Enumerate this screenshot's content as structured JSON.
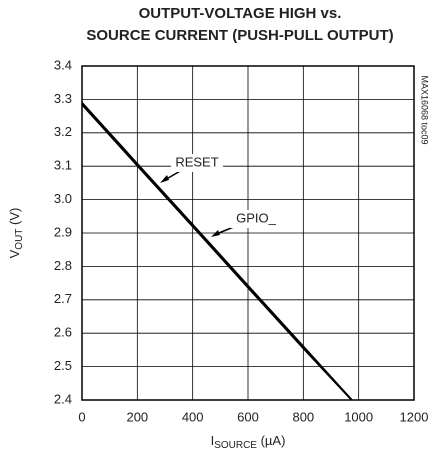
{
  "chart_data": {
    "type": "line",
    "title": [
      "OUTPUT-VOLTAGE HIGH vs.",
      "SOURCE CURRENT (PUSH-PULL OUTPUT)"
    ],
    "xlabel": [
      "I",
      "SOURCE",
      " (µA)"
    ],
    "ylabel": [
      "V",
      "OUT",
      " (V)"
    ],
    "side_note": "MAX16068 toc09",
    "x": [
      0,
      200,
      400,
      600,
      800,
      975
    ],
    "series": [
      {
        "name": "RESET",
        "color": "#000000",
        "values": [
          3.29,
          3.107,
          2.925,
          2.742,
          2.56,
          2.4
        ]
      },
      {
        "name": "GPIO_",
        "color": "#000000",
        "values": [
          3.285,
          3.102,
          2.92,
          2.737,
          2.555,
          2.4
        ]
      }
    ],
    "xlim": [
      0,
      1200
    ],
    "xticks": [
      0,
      200,
      400,
      600,
      800,
      1000,
      1200
    ],
    "ylim": [
      2.4,
      3.4
    ],
    "yticks": [
      3.4,
      3.3,
      3.2,
      3.1,
      {
        "value": 3,
        "label": "3.0"
      },
      2.9,
      2.8,
      2.7,
      2.6,
      2.5,
      2.4
    ],
    "grid": true
  }
}
